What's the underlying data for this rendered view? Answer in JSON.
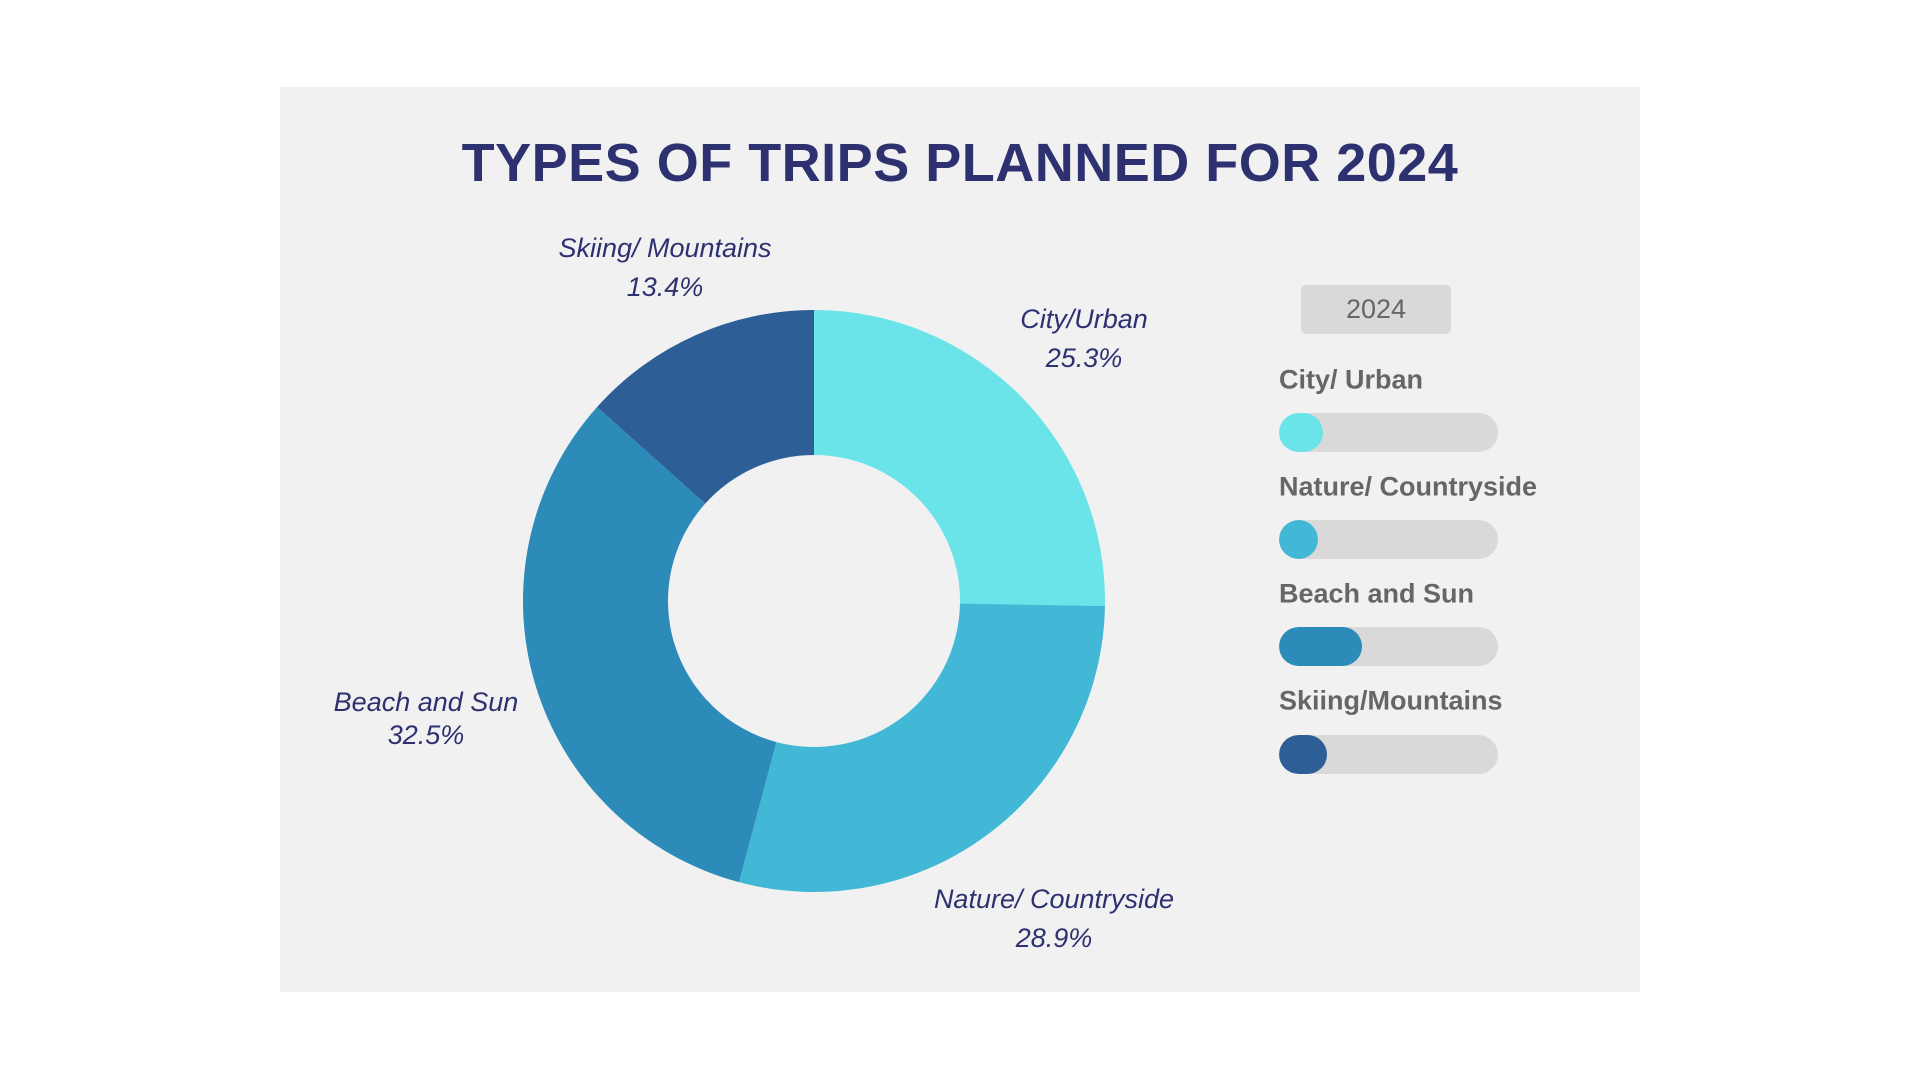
{
  "chart_data": {
    "type": "pie",
    "variant": "donut",
    "title": "TYPES OF TRIPS PLANNED FOR 2024",
    "slices": [
      {
        "label": "City/Urban",
        "value": 25.3,
        "value_label": "25.3%",
        "color": "#6ae4e8"
      },
      {
        "label": "Nature/ Countryside",
        "value": 28.9,
        "value_label": "28.9%",
        "color": "#42b8d6"
      },
      {
        "label": "Beach and Sun",
        "value": 32.5,
        "value_label": "32.5%",
        "color": "#2d8bb9"
      },
      {
        "label": "Skiing/ Mountains",
        "value": 13.4,
        "value_label": "13.4%",
        "color": "#2d5f96"
      }
    ],
    "start_angle": "top, clockwise"
  },
  "legend": {
    "year_badge": "2024",
    "items": [
      {
        "label": "City/ Urban",
        "fill": 0.2,
        "color": "#6ae4e8"
      },
      {
        "label": "Nature/ Countryside",
        "fill": 0.18,
        "color": "#42b8d6"
      },
      {
        "label": "Beach and Sun",
        "fill": 0.38,
        "color": "#2d8bb9"
      },
      {
        "label": "Skiing/Mountains",
        "fill": 0.22,
        "color": "#2d5f96"
      }
    ],
    "track_color": "#d9d9d9"
  },
  "colors": {
    "title": "#2e3170",
    "panel_bg": "#f1f1f1",
    "legend_text": "#666666"
  }
}
